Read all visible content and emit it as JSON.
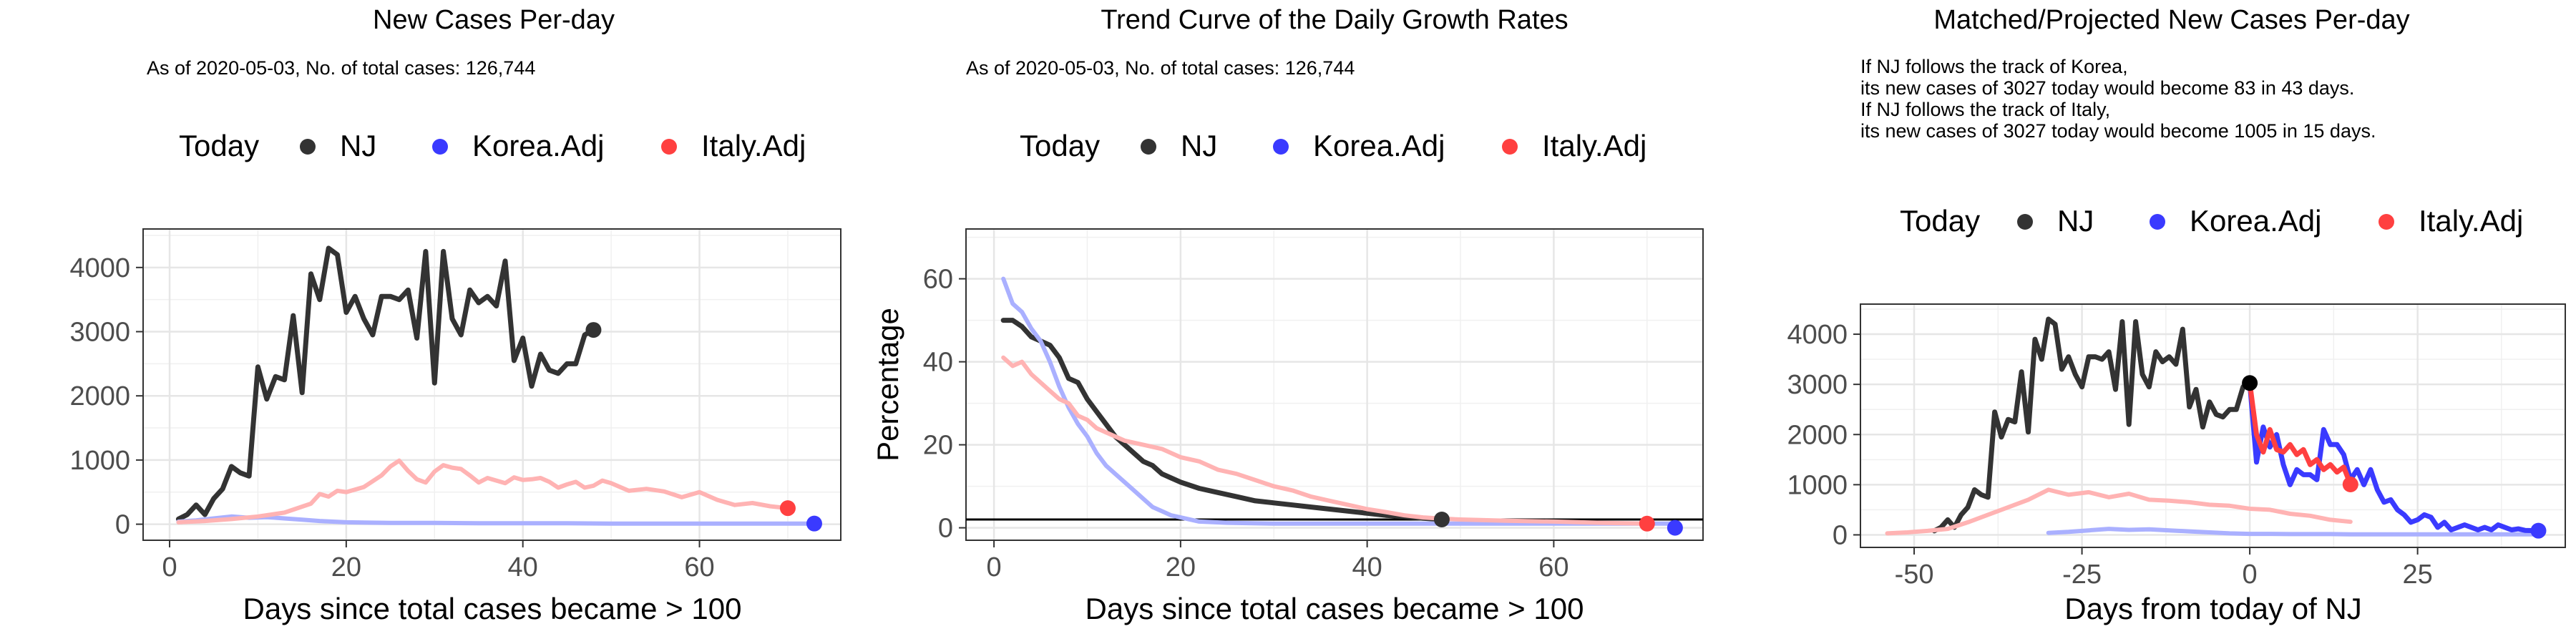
{
  "colors": {
    "nj": "#333333",
    "korea": "#3a3aff",
    "italy": "#ff4040",
    "korea_faint": "#aab0ff",
    "italy_faint": "#ffb3b3",
    "grid": "#e6e6e6",
    "axis": "#333333"
  },
  "chart_data": [
    {
      "type": "line",
      "title": "New Cases Per-day",
      "subtitle": "As of 2020-05-03, No. of total cases: 126,744",
      "legend": {
        "title": "Today",
        "entries": [
          "NJ",
          "Korea.Adj",
          "Italy.Adj"
        ],
        "placement": "top"
      },
      "xlabel": "Days since total cases became > 100",
      "ylabel": "",
      "xlim": [
        -3,
        76
      ],
      "ylim": [
        -250,
        4600
      ],
      "xticks": [
        0,
        20,
        40,
        60
      ],
      "yticks": [
        0,
        1000,
        2000,
        3000,
        4000
      ],
      "grid": true,
      "series": [
        {
          "name": "NJ",
          "color": "#333333",
          "x": [
            1,
            2,
            3,
            4,
            5,
            6,
            7,
            8,
            9,
            10,
            11,
            12,
            13,
            14,
            15,
            16,
            17,
            18,
            19,
            20,
            21,
            22,
            23,
            24,
            25,
            26,
            27,
            28,
            29,
            30,
            31,
            32,
            33,
            34,
            35,
            36,
            37,
            38,
            39,
            40,
            41,
            42,
            43,
            44,
            45,
            46,
            47,
            48
          ],
          "y": [
            80,
            150,
            300,
            150,
            400,
            550,
            900,
            800,
            750,
            2450,
            1950,
            2300,
            2250,
            3250,
            2050,
            3900,
            3500,
            4300,
            4200,
            3300,
            3550,
            3200,
            2950,
            3550,
            3550,
            3500,
            3650,
            2900,
            4250,
            2200,
            4250,
            3200,
            2950,
            3650,
            3450,
            3550,
            3400,
            4100,
            2550,
            2900,
            2150,
            2650,
            2400,
            2350,
            2500,
            2500,
            2950,
            3027
          ]
        },
        {
          "name": "Korea.Adj",
          "color": "#aab0ff",
          "x": [
            1,
            3,
            5,
            7,
            9,
            11,
            13,
            15,
            17,
            20,
            25,
            30,
            35,
            40,
            45,
            50,
            55,
            60,
            65,
            70,
            73
          ],
          "y": [
            40,
            60,
            90,
            120,
            100,
            110,
            90,
            70,
            50,
            30,
            20,
            20,
            15,
            15,
            15,
            10,
            10,
            10,
            10,
            10,
            10
          ]
        },
        {
          "name": "Italy.Adj",
          "color": "#ffb3b3",
          "x": [
            1,
            4,
            7,
            10,
            13,
            16,
            17,
            18,
            19,
            20,
            22,
            24,
            25,
            26,
            27,
            28,
            29,
            30,
            31,
            32,
            33,
            34,
            35,
            36,
            37,
            38,
            39,
            40,
            41,
            42,
            43,
            44,
            45,
            46,
            47,
            48,
            49,
            50,
            52,
            54,
            56,
            58,
            60,
            62,
            64,
            66,
            68,
            70
          ],
          "y": [
            30,
            50,
            80,
            120,
            180,
            320,
            470,
            430,
            520,
            500,
            580,
            760,
            900,
            990,
            830,
            700,
            650,
            820,
            920,
            880,
            860,
            760,
            650,
            720,
            680,
            640,
            730,
            690,
            700,
            720,
            660,
            570,
            620,
            660,
            570,
            600,
            680,
            640,
            520,
            550,
            510,
            420,
            500,
            380,
            300,
            330,
            280,
            250
          ]
        }
      ],
      "today_points": [
        {
          "series": "NJ",
          "x": 48,
          "y": 3027,
          "color": "#333333"
        },
        {
          "series": "Korea.Adj",
          "x": 73,
          "y": 10,
          "color": "#3a3aff"
        },
        {
          "series": "Italy.Adj",
          "x": 70,
          "y": 250,
          "color": "#ff4040"
        }
      ]
    },
    {
      "type": "line",
      "title": "Trend Curve of the Daily Growth Rates",
      "subtitle": "As of 2020-05-03, No. of total cases: 126,744",
      "legend": {
        "title": "Today",
        "entries": [
          "NJ",
          "Korea.Adj",
          "Italy.Adj"
        ],
        "placement": "top"
      },
      "xlabel": "Days since total cases became > 100",
      "ylabel": "Percentage",
      "xlim": [
        -3,
        76
      ],
      "ylim": [
        -3,
        72
      ],
      "xticks": [
        0,
        20,
        40,
        60
      ],
      "yticks": [
        0,
        20,
        40,
        60
      ],
      "hline": 2,
      "grid": true,
      "series": [
        {
          "name": "NJ",
          "color": "#333333",
          "x": [
            1,
            2,
            3,
            4,
            5,
            6,
            7,
            8,
            9,
            10,
            11,
            12,
            13,
            14,
            15,
            16,
            17,
            18,
            19,
            20,
            22,
            24,
            26,
            28,
            30,
            32,
            34,
            36,
            38,
            40,
            42,
            44,
            46,
            48
          ],
          "y": [
            50,
            50,
            48.5,
            46,
            45,
            44,
            41,
            36,
            35,
            31,
            28,
            25,
            22,
            20,
            18,
            16,
            15,
            13,
            12,
            11,
            9.5,
            8.5,
            7.5,
            6.5,
            6,
            5.5,
            5,
            4.5,
            4,
            3.5,
            3,
            2.7,
            2.3,
            2
          ]
        },
        {
          "name": "Korea.Adj",
          "color": "#aab0ff",
          "x": [
            1,
            2,
            3,
            4,
            5,
            6,
            7,
            8,
            9,
            10,
            11,
            12,
            13,
            14,
            15,
            16,
            17,
            18,
            19,
            20,
            22,
            25,
            30,
            35,
            40,
            50,
            60,
            73
          ],
          "y": [
            60,
            54,
            52,
            48,
            45,
            40,
            34,
            29,
            25,
            22,
            18,
            15,
            13,
            11,
            9,
            7,
            5,
            4,
            3,
            2.5,
            1.5,
            1.2,
            1,
            1,
            1,
            1,
            1,
            1
          ]
        },
        {
          "name": "Italy.Adj",
          "color": "#ffb3b3",
          "x": [
            1,
            2,
            3,
            4,
            5,
            6,
            7,
            8,
            9,
            10,
            11,
            12,
            14,
            16,
            18,
            20,
            22,
            24,
            26,
            28,
            30,
            32,
            34,
            36,
            38,
            40,
            42,
            44,
            46,
            48,
            50,
            55,
            60,
            65,
            70
          ],
          "y": [
            41,
            39,
            40,
            37,
            35,
            33,
            31,
            30,
            27,
            26,
            24,
            23,
            21,
            20,
            19,
            17,
            16,
            14,
            13,
            11.5,
            10,
            9,
            7.5,
            6.5,
            5.5,
            4.5,
            3.8,
            3,
            2.5,
            2.2,
            2,
            1.7,
            1.5,
            1.2,
            1
          ]
        }
      ],
      "today_points": [
        {
          "series": "NJ",
          "x": 48,
          "y": 2,
          "color": "#333333"
        },
        {
          "series": "Korea.Adj",
          "x": 73,
          "y": 0,
          "color": "#3a3aff"
        },
        {
          "series": "Italy.Adj",
          "x": 70,
          "y": 1,
          "color": "#ff4040"
        }
      ]
    },
    {
      "type": "line",
      "title": "Matched/Projected New Cases Per-day",
      "subtitle_lines": [
        "If NJ follows the track of Korea,",
        "its new cases of 3027 today would become 83 in 43 days.",
        "If NJ follows the track of Italy,",
        "its new cases of 3027 today would become 1005 in 15 days."
      ],
      "legend": {
        "title": "Today",
        "entries": [
          "NJ",
          "Korea.Adj",
          "Italy.Adj"
        ],
        "placement": "top"
      },
      "xlabel": "Days from today of NJ",
      "ylabel": "",
      "xlim": [
        -58,
        47
      ],
      "ylim": [
        -250,
        4600
      ],
      "xticks": [
        -50,
        -25,
        0,
        25
      ],
      "yticks": [
        0,
        1000,
        2000,
        3000,
        4000
      ],
      "grid": true,
      "series": [
        {
          "name": "NJ",
          "color": "#333333",
          "x": [
            -47,
            -46,
            -45,
            -44,
            -43,
            -42,
            -41,
            -40,
            -39,
            -38,
            -37,
            -36,
            -35,
            -34,
            -33,
            -32,
            -31,
            -30,
            -29,
            -28,
            -27,
            -26,
            -25,
            -24,
            -23,
            -22,
            -21,
            -20,
            -19,
            -18,
            -17,
            -16,
            -15,
            -14,
            -13,
            -12,
            -11,
            -10,
            -9,
            -8,
            -7,
            -6,
            -5,
            -4,
            -3,
            -2,
            -1,
            0
          ],
          "y": [
            80,
            150,
            300,
            150,
            400,
            550,
            900,
            800,
            750,
            2450,
            1950,
            2300,
            2250,
            3250,
            2050,
            3900,
            3500,
            4300,
            4200,
            3300,
            3550,
            3200,
            2950,
            3550,
            3550,
            3500,
            3650,
            2900,
            4250,
            2200,
            4250,
            3200,
            2950,
            3650,
            3450,
            3550,
            3400,
            4100,
            2550,
            2900,
            2150,
            2650,
            2400,
            2350,
            2500,
            2500,
            2950,
            3027
          ]
        },
        {
          "name": "Korea.Adj (past)",
          "color": "#aab0ff",
          "x": [
            -30,
            -27,
            -24,
            -21,
            -18,
            -15,
            -12,
            -9,
            -6,
            -3,
            0,
            3,
            6,
            9,
            12,
            15,
            18,
            21,
            25,
            30,
            35,
            40,
            43
          ],
          "y": [
            40,
            60,
            90,
            120,
            100,
            110,
            90,
            70,
            50,
            30,
            20,
            20,
            15,
            15,
            15,
            10,
            10,
            10,
            10,
            10,
            10,
            10,
            10
          ]
        },
        {
          "name": "Italy.Adj (past)",
          "color": "#ffb3b3",
          "x": [
            -54,
            -51,
            -48,
            -45,
            -42,
            -39,
            -36,
            -33,
            -30,
            -27,
            -24,
            -21,
            -18,
            -15,
            -12,
            -9,
            -6,
            -3,
            0,
            3,
            6,
            9,
            12,
            15
          ],
          "y": [
            30,
            50,
            80,
            120,
            250,
            400,
            550,
            700,
            900,
            800,
            850,
            750,
            820,
            700,
            680,
            650,
            600,
            580,
            520,
            500,
            420,
            380,
            300,
            260
          ]
        },
        {
          "name": "Korea.Adj (projected)",
          "color": "#3a3aff",
          "x": [
            0,
            1,
            2,
            3,
            4,
            5,
            6,
            7,
            8,
            9,
            10,
            11,
            12,
            13,
            14,
            15,
            16,
            17,
            18,
            19,
            20,
            21,
            22,
            23,
            24,
            25,
            26,
            27,
            28,
            29,
            30,
            31,
            32,
            33,
            34,
            35,
            36,
            37,
            38,
            39,
            40,
            41,
            42,
            43
          ],
          "y": [
            3027,
            1450,
            2150,
            1750,
            2000,
            1400,
            1000,
            1300,
            1200,
            1200,
            1100,
            2100,
            1800,
            1800,
            1600,
            1100,
            1300,
            1000,
            1300,
            900,
            650,
            700,
            500,
            400,
            250,
            300,
            400,
            350,
            150,
            250,
            100,
            150,
            200,
            150,
            100,
            150,
            100,
            200,
            150,
            100,
            120,
            90,
            85,
            83
          ]
        },
        {
          "name": "Italy.Adj (projected)",
          "color": "#ff4040",
          "x": [
            0,
            1,
            2,
            3,
            4,
            5,
            6,
            7,
            8,
            9,
            10,
            11,
            12,
            13,
            14,
            15
          ],
          "y": [
            3027,
            2000,
            1650,
            2100,
            1700,
            1650,
            1800,
            1600,
            1700,
            1400,
            1500,
            1300,
            1400,
            1250,
            1350,
            1005
          ]
        }
      ],
      "today_points": [
        {
          "series": "NJ",
          "x": 0,
          "y": 3027,
          "color": "#000000"
        },
        {
          "series": "Korea.Adj",
          "x": 43,
          "y": 83,
          "color": "#3a3aff"
        },
        {
          "series": "Italy.Adj",
          "x": 15,
          "y": 1005,
          "color": "#ff4040"
        }
      ]
    }
  ]
}
